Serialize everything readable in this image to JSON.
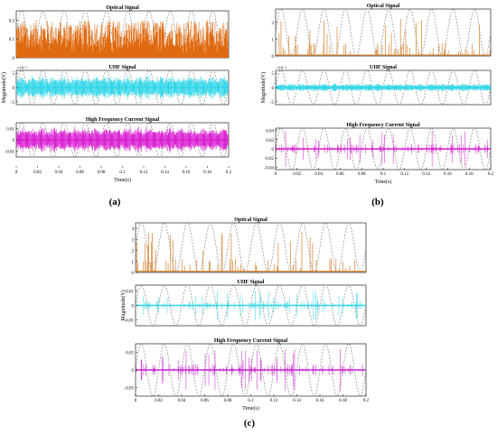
{
  "panels": [
    {
      "label": "(a)",
      "xlabel": "Time(s)",
      "ylabel": "Magnitude(V)",
      "xticks": [
        0,
        0.02,
        0.04,
        0.06,
        0.08,
        0.1,
        0.12,
        0.14,
        0.16,
        0.18,
        0.2
      ],
      "xtick_labels": [
        "0",
        "0.02",
        "0.04",
        "0.06",
        "0.08",
        "0.1",
        "0.12",
        "0.14",
        "0.16",
        "0.18",
        "0.2"
      ],
      "subplots": [
        {
          "title": "Optical Signal",
          "exponent": "",
          "ylim": [
            0,
            0.25
          ],
          "yticks": [
            0,
            0.1,
            0.2
          ],
          "ytick_labels": [
            "0",
            "0.1",
            "0.2"
          ],
          "color": "#e06a10",
          "style": "dense",
          "amplitude": 0.2,
          "baseline": 0
        },
        {
          "title": "UHF Signal",
          "exponent": "×10⁻³",
          "ylim": [
            -6,
            6
          ],
          "yticks": [
            -5,
            0,
            5
          ],
          "ytick_labels": [
            "-5",
            "0",
            "5"
          ],
          "color": "#2fd6e8",
          "style": "band",
          "amplitude": 4.5,
          "baseline": 0
        },
        {
          "title": "High Frequency Current Signal",
          "exponent": "",
          "ylim": [
            -0.015,
            0.015
          ],
          "yticks": [
            -0.01,
            0,
            0.01
          ],
          "ytick_labels": [
            "-0.01",
            "0",
            "0.01"
          ],
          "color": "#d81ad0",
          "style": "band",
          "amplitude": 0.012,
          "baseline": 0
        }
      ]
    },
    {
      "label": "(b)",
      "xlabel": "Time(s)",
      "ylabel": "Magnitude(V)",
      "xticks": [
        0,
        0.02,
        0.04,
        0.06,
        0.08,
        0.1,
        0.12,
        0.14,
        0.16,
        0.18,
        0.2
      ],
      "xtick_labels": [
        "0",
        "0.02",
        "0.04",
        "0.06",
        "0.08",
        "0.1",
        "0.12",
        "0.14",
        "0.16",
        "0.18",
        "0.2"
      ],
      "subplots": [
        {
          "title": "Optical Signal",
          "exponent": "",
          "ylim": [
            0,
            2.8
          ],
          "yticks": [
            0,
            1,
            2
          ],
          "ytick_labels": [
            "0",
            "1",
            "2"
          ],
          "color": "#d9822b",
          "style": "sparse",
          "amplitude": 2.2,
          "baseline": 0.05
        },
        {
          "title": "UHF Signal",
          "exponent": "×10⁻³",
          "ylim": [
            -6,
            6
          ],
          "yticks": [
            -5,
            0,
            5
          ],
          "ytick_labels": [
            "-5",
            "0",
            "5"
          ],
          "color": "#2fd6e8",
          "style": "band",
          "amplitude": 1.5,
          "baseline": 0
        },
        {
          "title": "High Frequency Current Signal",
          "exponent": "",
          "ylim": [
            -0.045,
            0.045
          ],
          "yticks": [
            -0.04,
            -0.02,
            0,
            0.02,
            0.04
          ],
          "ytick_labels": [
            "-0.04",
            "-0.02",
            "0",
            "0.02",
            "0.04"
          ],
          "color": "#d81ad0",
          "style": "sparse2",
          "amplitude": 0.04,
          "baseline": 0
        }
      ]
    },
    {
      "label": "(c)",
      "xlabel": "Time(s)",
      "ylabel": "Magnitude(V)",
      "xticks": [
        0,
        0.02,
        0.04,
        0.06,
        0.08,
        0.1,
        0.12,
        0.14,
        0.16,
        0.18,
        0.2
      ],
      "xtick_labels": [
        "0",
        "0.02",
        "0.04",
        "0.06",
        "0.08",
        "0.1",
        "0.12",
        "0.14",
        "0.16",
        "0.18",
        "0.2"
      ],
      "subplots": [
        {
          "title": "Optical Signal",
          "exponent": "",
          "ylim": [
            0,
            4.5
          ],
          "yticks": [
            0,
            1,
            2,
            3,
            4
          ],
          "ytick_labels": [
            "0",
            "1",
            "2",
            "3",
            "4"
          ],
          "color": "#d9822b",
          "style": "sparse",
          "amplitude": 3.6,
          "baseline": 0.1
        },
        {
          "title": "UHF Signal",
          "exponent": "",
          "ylim": [
            -0.014,
            0.014
          ],
          "yticks": [
            -0.01,
            0,
            0.01
          ],
          "ytick_labels": [
            "-0.01",
            "0",
            "0.01"
          ],
          "color": "#2fd6e8",
          "style": "sparse2",
          "amplitude": 0.011,
          "baseline": 0
        },
        {
          "title": "High Frequency Current Signal",
          "exponent": "",
          "ylim": [
            -0.075,
            0.075
          ],
          "yticks": [
            -0.05,
            0,
            0.05
          ],
          "ytick_labels": [
            "-0.05",
            "0",
            "0.05"
          ],
          "color": "#c51fd0",
          "style": "sparse2",
          "amplitude": 0.06,
          "baseline": 0
        }
      ]
    }
  ],
  "chart_data": [
    {
      "type": "line",
      "panel": "(a)",
      "xlabel": "Time(s)",
      "ylabel": "Magnitude(V)",
      "xlim": [
        0,
        0.2
      ],
      "series": [
        {
          "name": "Optical Signal",
          "ylim": [
            0,
            0.25
          ]
        },
        {
          "name": "UHF Signal",
          "ylim": [
            -0.006,
            0.006
          ]
        },
        {
          "name": "High Frequency Current Signal",
          "ylim": [
            -0.015,
            0.015
          ]
        }
      ],
      "reference_wave": {
        "style": "dashed sinusoid",
        "frequency_hz": 50
      }
    },
    {
      "type": "line",
      "panel": "(b)",
      "xlabel": "Time(s)",
      "ylabel": "Magnitude(V)",
      "xlim": [
        0,
        0.2
      ],
      "series": [
        {
          "name": "Optical Signal",
          "ylim": [
            0,
            2.8
          ]
        },
        {
          "name": "UHF Signal",
          "ylim": [
            -0.006,
            0.006
          ]
        },
        {
          "name": "High Frequency Current Signal",
          "ylim": [
            -0.045,
            0.045
          ]
        }
      ],
      "reference_wave": {
        "style": "dashed sinusoid",
        "frequency_hz": 50
      }
    },
    {
      "type": "line",
      "panel": "(c)",
      "xlabel": "Time(s)",
      "ylabel": "Magnitude(V)",
      "xlim": [
        0,
        0.2
      ],
      "series": [
        {
          "name": "Optical Signal",
          "ylim": [
            0,
            4.5
          ]
        },
        {
          "name": "UHF Signal",
          "ylim": [
            -0.014,
            0.014
          ]
        },
        {
          "name": "High Frequency Current Signal",
          "ylim": [
            -0.075,
            0.075
          ]
        }
      ],
      "reference_wave": {
        "style": "dashed sinusoid",
        "frequency_hz": 50
      }
    }
  ]
}
